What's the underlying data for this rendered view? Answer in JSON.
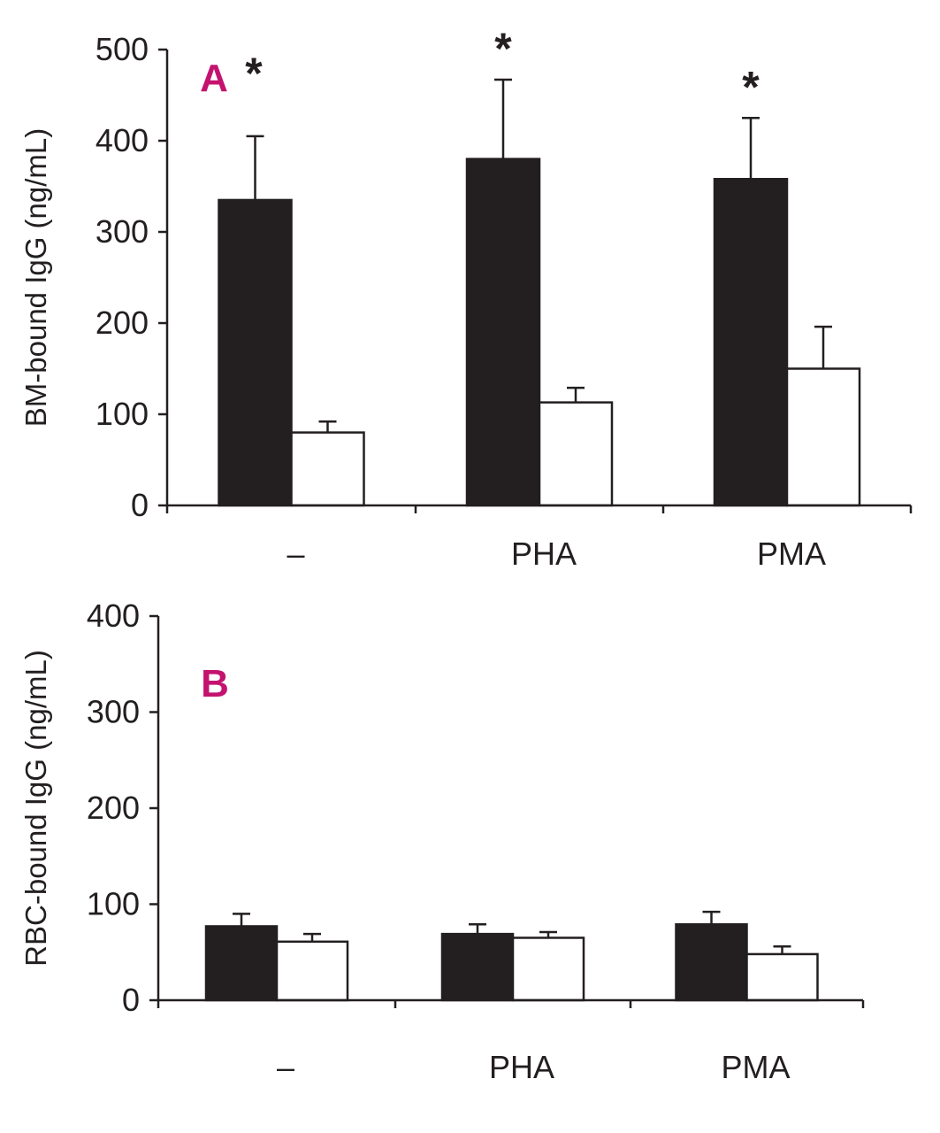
{
  "colors": {
    "filled_bar": "#231f20",
    "open_bar": "#ffffff",
    "outline": "#231f20",
    "panel_label": "#c4126f"
  },
  "chart_data": [
    {
      "type": "bar",
      "panel_label": "A",
      "ylabel": "BM-bound IgG (ng/mL)",
      "xlabel": "",
      "ylim": [
        0,
        500
      ],
      "yticks": [
        0,
        100,
        200,
        300,
        400,
        500
      ],
      "ytick_labels": [
        "0",
        "100",
        "200",
        "300",
        "400",
        "500"
      ],
      "categories": [
        "–",
        "PHA",
        "PMA"
      ],
      "series": [
        {
          "name": "filled",
          "fill": "#231f20",
          "values": [
            335,
            380,
            358
          ],
          "errors": [
            70,
            87,
            67
          ]
        },
        {
          "name": "open",
          "fill": "#ffffff",
          "values": [
            80,
            113,
            150
          ],
          "errors": [
            12,
            16,
            46
          ]
        }
      ],
      "annotations": [
        {
          "text": "*",
          "category": 0,
          "series": 0
        },
        {
          "text": "*",
          "category": 1,
          "series": 0
        },
        {
          "text": "*",
          "category": 2,
          "series": 0
        }
      ]
    },
    {
      "type": "bar",
      "panel_label": "B",
      "ylabel": "RBC-bound IgG (ng/mL)",
      "xlabel": "",
      "ylim": [
        0,
        400
      ],
      "yticks": [
        0,
        100,
        200,
        300,
        400
      ],
      "ytick_labels": [
        "0",
        "100",
        "200",
        "300",
        "400"
      ],
      "categories": [
        "–",
        "PHA",
        "PMA"
      ],
      "series": [
        {
          "name": "filled",
          "fill": "#231f20",
          "values": [
            77,
            69,
            79
          ],
          "errors": [
            13,
            10,
            13
          ]
        },
        {
          "name": "open",
          "fill": "#ffffff",
          "values": [
            61,
            65,
            48
          ],
          "errors": [
            8,
            6,
            8
          ]
        }
      ],
      "annotations": []
    }
  ]
}
